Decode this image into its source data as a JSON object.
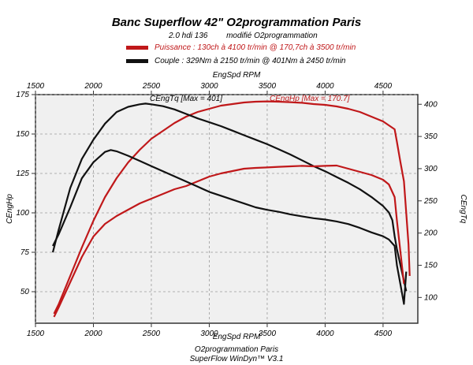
{
  "header": {
    "title": "Banc Superflow 42\" O2programmation Paris",
    "subtitle_engine": "2.0 hdi 136",
    "subtitle_note": "modifié O2programmation",
    "legend_power": "Puissance : 130ch à 4100 tr/min @ 170,7ch à 3500 tr/min",
    "legend_torque": "Couple : 329Nm à 2150 tr/min @ 401Nm à 2450 tr/min"
  },
  "footer": {
    "line1": "O2programmation Paris",
    "line2": "SuperFlow WinDyn™ V3.1"
  },
  "colors": {
    "modified": "#c0181a",
    "stock": "#111111",
    "plot_bg": "#f0f0f0"
  },
  "chart_data": {
    "type": "line",
    "xlabel": "EngSpd RPM",
    "ylabel_left": "CEngHp",
    "ylabel_right": "CEngTq",
    "xlim": [
      1500,
      4800
    ],
    "ylim_left": [
      30,
      175
    ],
    "ylim_right": [
      60,
      415
    ],
    "x_ticks": [
      1500,
      2000,
      2500,
      3000,
      3500,
      4000,
      4500
    ],
    "y_left_ticks": [
      50,
      75,
      100,
      125,
      150,
      175
    ],
    "y_right_ticks": [
      100,
      150,
      200,
      250,
      300,
      350,
      400
    ],
    "annotations": {
      "torque_max": "CEngTq [Max = 401]",
      "power_max": "CEngHp [Max = 170.7]"
    },
    "series": [
      {
        "name": "Puissance",
        "axis": "left",
        "color": "#c0181a",
        "x": [
          1660,
          1700,
          1800,
          1900,
          2000,
          2100,
          2200,
          2300,
          2400,
          2500,
          2600,
          2700,
          2800,
          2900,
          3000,
          3100,
          3200,
          3300,
          3400,
          3500,
          3600,
          3700,
          3800,
          3900,
          4000,
          4100,
          4200,
          4300,
          4400,
          4500,
          4600,
          4620,
          4650,
          4680,
          4700,
          4720,
          4730
        ],
        "y": [
          36,
          42,
          60,
          78,
          95,
          110,
          122,
          132,
          140,
          147,
          152,
          157,
          161,
          164,
          166,
          168,
          169,
          170,
          170.5,
          170.7,
          170.5,
          170.2,
          169.8,
          169,
          168.5,
          167.5,
          166,
          164,
          161,
          158,
          153,
          145,
          132,
          120,
          100,
          80,
          60
        ]
      },
      {
        "name": "Couple",
        "axis": "right",
        "color": "#111111",
        "x": [
          1650,
          1700,
          1800,
          1900,
          2000,
          2100,
          2200,
          2300,
          2400,
          2450,
          2500,
          2600,
          2700,
          2800,
          2900,
          3000,
          3100,
          3200,
          3300,
          3400,
          3500,
          3600,
          3700,
          3800,
          3900,
          4000,
          4100,
          4200,
          4300,
          4400,
          4500,
          4550,
          4580,
          4600,
          4620,
          4650,
          4700
        ],
        "y": [
          170,
          205,
          270,
          315,
          345,
          370,
          388,
          396,
          400,
          401,
          400,
          397,
          392,
          385,
          378,
          372,
          366,
          359,
          352,
          345,
          338,
          330,
          322,
          313,
          304,
          296,
          287,
          278,
          268,
          256,
          242,
          232,
          220,
          195,
          175,
          150,
          110
        ]
      },
      {
        "name": "Puissance",
        "axis": "left",
        "color": "#c0181a",
        "x": [
          1660,
          1700,
          1800,
          1900,
          2000,
          2100,
          2200,
          2300,
          2400,
          2500,
          2600,
          2700,
          2800,
          2900,
          3000,
          3100,
          3200,
          3300,
          3400,
          3500,
          3600,
          3700,
          3800,
          3900,
          4000,
          4100,
          4200,
          4300,
          4400,
          4500,
          4550,
          4600,
          4620,
          4650,
          4680
        ],
        "y": [
          34,
          40,
          56,
          72,
          85,
          93,
          98,
          102,
          106,
          109,
          112,
          115,
          117,
          120,
          123,
          125,
          126.5,
          128,
          128.5,
          128.8,
          129.2,
          129.5,
          129.8,
          129.5,
          129.8,
          130,
          128,
          126,
          124,
          121,
          118,
          110,
          95,
          75,
          55
        ]
      },
      {
        "name": "Couple",
        "axis": "right",
        "color": "#111111",
        "x": [
          1650,
          1700,
          1800,
          1900,
          2000,
          2100,
          2150,
          2200,
          2300,
          2400,
          2500,
          2600,
          2700,
          2800,
          2900,
          3000,
          3100,
          3200,
          3300,
          3400,
          3500,
          3600,
          3700,
          3800,
          3900,
          4000,
          4100,
          4200,
          4300,
          4400,
          4500,
          4550,
          4600,
          4620,
          4650,
          4680,
          4700
        ],
        "y": [
          180,
          198,
          240,
          285,
          310,
          326,
          329,
          327,
          320,
          312,
          304,
          296,
          288,
          280,
          272,
          264,
          258,
          252,
          246,
          240,
          236,
          233,
          229,
          226,
          223,
          221,
          218,
          214,
          208,
          201,
          195,
          190,
          180,
          150,
          120,
          90,
          140
        ]
      }
    ]
  }
}
